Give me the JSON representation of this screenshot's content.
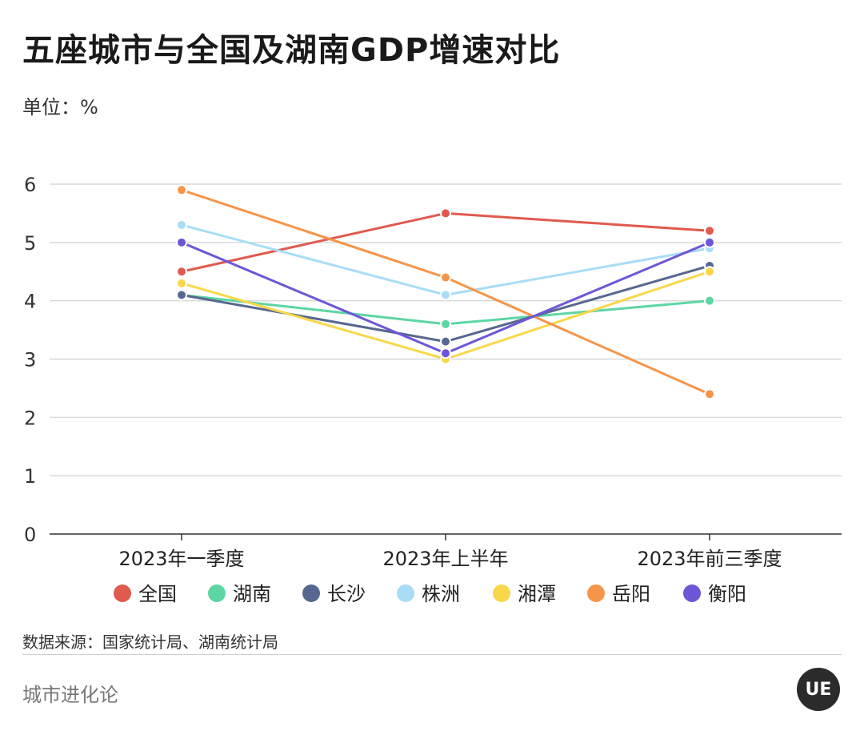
{
  "title": "五座城市与全国及湖南GDP增速对比",
  "unit_label": "单位：%",
  "source": "数据来源：国家统计局、湖南统计局",
  "brand": "城市进化论",
  "logo_text": "UE",
  "chart_data": {
    "type": "line",
    "title": "五座城市与全国及湖南GDP增速对比",
    "ylabel": "单位：%",
    "categories": [
      "2023年一季度",
      "2023年上半年",
      "2023年前三季度"
    ],
    "ylim": [
      0,
      6
    ],
    "yticks": [
      0,
      1,
      2,
      3,
      4,
      5,
      6
    ],
    "grid": true,
    "legend": "bottom",
    "series": [
      {
        "name": "全国",
        "color": "#e05a4e",
        "values": [
          4.5,
          5.5,
          5.2
        ]
      },
      {
        "name": "湖南",
        "color": "#5dd6a4",
        "values": [
          4.1,
          3.6,
          4.0
        ]
      },
      {
        "name": "长沙",
        "color": "#56688f",
        "values": [
          4.1,
          3.3,
          4.6
        ]
      },
      {
        "name": "株洲",
        "color": "#a9ddf5",
        "values": [
          5.3,
          4.1,
          4.9
        ]
      },
      {
        "name": "湘潭",
        "color": "#f8d84a",
        "values": [
          4.3,
          3.0,
          4.5
        ]
      },
      {
        "name": "岳阳",
        "color": "#f5954a",
        "values": [
          5.9,
          4.4,
          2.4
        ]
      },
      {
        "name": "衡阳",
        "color": "#6e56d6",
        "values": [
          5.0,
          3.1,
          5.0
        ]
      }
    ]
  }
}
